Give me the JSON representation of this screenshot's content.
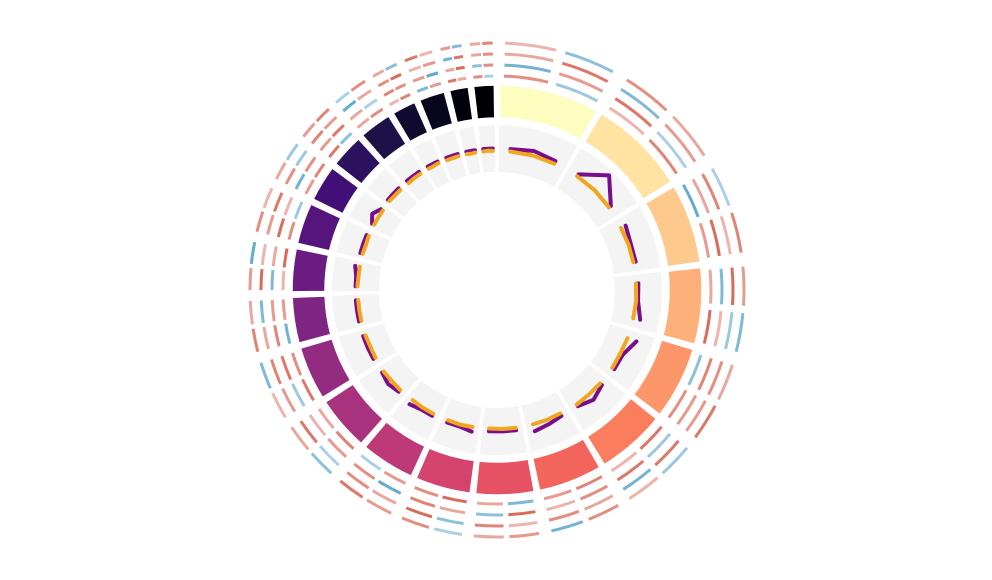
{
  "chart_data": {
    "type": "circos",
    "segments": {
      "lengths": [
        249,
        242,
        198,
        190,
        181,
        171,
        159,
        145,
        138,
        134,
        135,
        133,
        114,
        107,
        102,
        90,
        83,
        80,
        59,
        64,
        47,
        51
      ],
      "colors": [
        "#fcfdbf",
        "#fee3a2",
        "#fec98d",
        "#feb078",
        "#fd9668",
        "#fa7d5e",
        "#f3655c",
        "#e65164",
        "#d3436e",
        "#bd3977",
        "#a8327d",
        "#932b80",
        "#7e2482",
        "#6a1c81",
        "#56147d",
        "#410f75",
        "#2c115f",
        "#1d1147",
        "#100b2e",
        "#07061c",
        "#02020e",
        "#000004"
      ]
    },
    "ylim": [
      0,
      1
    ],
    "scatter_tracks": [
      {
        "color": "#7a0d8a",
        "values": [
          0.5,
          0.55,
          0.5,
          0.5,
          0.9,
          0.5,
          0.55,
          0.5,
          0.5,
          0.5,
          0.5,
          0.6,
          0.65,
          0.5,
          0.5,
          0.5,
          0.6,
          0.5,
          0.5,
          0.55,
          0.6,
          0.5,
          0.5,
          0.5,
          0.55,
          0.5,
          0.5,
          0.5,
          0.5,
          0.55,
          0.5,
          0.55,
          0.5,
          0.5,
          0.5,
          0.5,
          0.5,
          0.5,
          0.5,
          0.5,
          0.5,
          0.55,
          0.5,
          0.5,
          0.5,
          0.5,
          0.6,
          0.5,
          0.5,
          0.5,
          0.5,
          0.5,
          0.5,
          0.5,
          0.5,
          0.5,
          0.5,
          0.5,
          0.5,
          0.5,
          0.5,
          0.5,
          0.5,
          0.5,
          0.5,
          0.5
        ]
      },
      {
        "color": "#f2a61f",
        "values": [
          0.45,
          0.45,
          0.44,
          0.45,
          0.46,
          0.45,
          0.44,
          0.45,
          0.45,
          0.45,
          0.46,
          0.45,
          0.45,
          0.44,
          0.45,
          0.45,
          0.45,
          0.46,
          0.44,
          0.45,
          0.45,
          0.45,
          0.45,
          0.44,
          0.45,
          0.46,
          0.45,
          0.45,
          0.45,
          0.44,
          0.45,
          0.45,
          0.46,
          0.45,
          0.44,
          0.45,
          0.45,
          0.45,
          0.45,
          0.46,
          0.45,
          0.45,
          0.45,
          0.44,
          0.45,
          0.45,
          0.45,
          0.45,
          0.46,
          0.45,
          0.45,
          0.44,
          0.45,
          0.45,
          0.45,
          0.45,
          0.46,
          0.45,
          0.45,
          0.45,
          0.45,
          0.44,
          0.45,
          0.45,
          0.46,
          0.45
        ]
      }
    ],
    "vlim": [
      -1,
      1
    ],
    "heatmap_colors": [
      "#4a9bc7",
      "#d6604d"
    ],
    "heatmap_tracks": [
      {
        "values": [
          0.6,
          -0.4,
          0.3,
          0.7,
          -0.8,
          0.5,
          0.4,
          0.9,
          -0.5,
          0.6,
          0.8,
          0.3,
          0.7,
          0.5,
          -0.6,
          0.4,
          0.9,
          0.6,
          0.5,
          -0.3,
          0.7,
          0.4,
          0.8,
          0.6,
          -0.7,
          0.5,
          0.3,
          0.9,
          0.6,
          -0.4,
          0.5,
          0.7,
          0.8,
          -0.5,
          0.4,
          0.6,
          0.3,
          0.7,
          -0.6,
          0.5,
          0.8,
          0.4,
          0.6,
          -0.3
        ]
      },
      {
        "values": [
          -0.7,
          0.5,
          0.8,
          -0.3,
          0.4,
          0.9,
          -0.6,
          0.3,
          0.7,
          0.5,
          -0.4,
          0.8,
          0.6,
          0.3,
          0.9,
          -0.5,
          0.4,
          0.7,
          -0.8,
          0.6,
          0.5,
          0.3,
          -0.4,
          0.8,
          0.7,
          0.5,
          -0.6,
          0.4,
          0.9,
          0.3,
          -0.7,
          0.6,
          0.5,
          0.8,
          0.4,
          -0.3,
          0.7,
          0.6,
          0.5,
          -0.8,
          0.4,
          0.9,
          -0.5,
          0.6
        ]
      },
      {
        "values": [
          0.4,
          0.8,
          -0.6,
          0.5,
          0.7,
          0.3,
          0.9,
          -0.4,
          0.6,
          0.5,
          0.8,
          -0.7,
          0.4,
          0.6,
          0.3,
          0.7,
          -0.5,
          0.9,
          0.4,
          0.6,
          -0.3,
          0.8,
          0.5,
          0.7,
          0.4,
          -0.6,
          0.9,
          0.3,
          0.5,
          0.8,
          0.6,
          -0.4,
          0.7,
          0.5,
          -0.8,
          0.4,
          0.6,
          0.9,
          0.3,
          0.5,
          -0.7,
          0.8,
          0.4,
          0.6
        ]
      },
      {
        "values": [
          0.3,
          -0.5,
          0.6,
          0.4,
          -0.3,
          0.7,
          0.5,
          -0.6,
          0.4,
          0.8,
          -0.4,
          0.3,
          0.6,
          -0.7,
          0.5,
          0.4,
          -0.3,
          0.6,
          0.5,
          0.8,
          -0.5,
          0.4,
          0.3,
          -0.6,
          0.7,
          0.4,
          0.5,
          -0.8,
          0.6,
          0.3,
          0.4,
          -0.4,
          0.5,
          0.7,
          -0.3,
          0.6,
          0.4,
          -0.5,
          0.8,
          0.3,
          0.5,
          -0.6,
          0.4,
          0.7
        ]
      }
    ]
  }
}
